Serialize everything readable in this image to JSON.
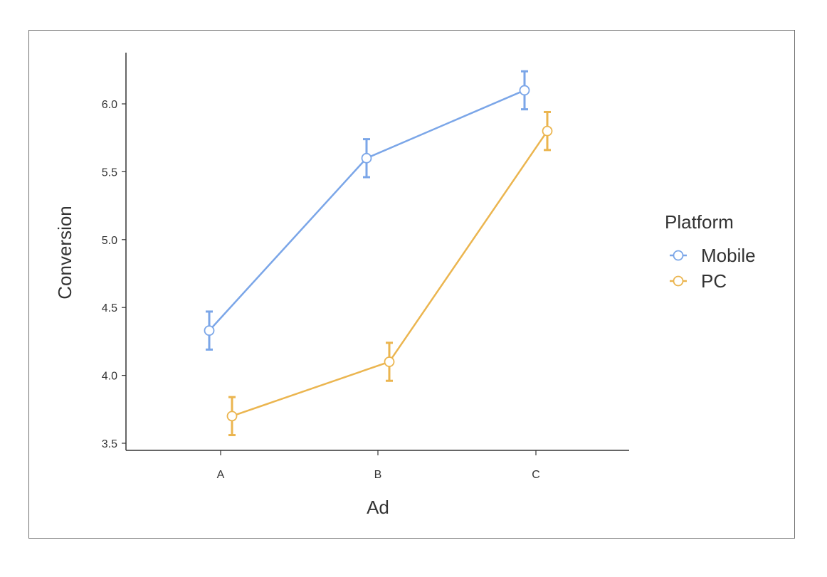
{
  "chart_data": {
    "type": "line",
    "xlabel": "Ad",
    "ylabel": "Conversion",
    "categories": [
      "A",
      "B",
      "C"
    ],
    "ylim": [
      3.45,
      6.37
    ],
    "yticks": [
      3.5,
      4.0,
      4.5,
      5.0,
      5.5,
      6.0
    ],
    "ytick_labels": [
      "3.5",
      "4.0",
      "4.5",
      "5.0",
      "5.5",
      "6.0"
    ],
    "grid": false,
    "legend": {
      "title": "Platform",
      "position": "right"
    },
    "series": [
      {
        "name": "Mobile",
        "color": "#7ba6e8",
        "values": [
          4.33,
          5.6,
          6.1
        ],
        "error_low": [
          4.19,
          5.46,
          5.96
        ],
        "error_high": [
          4.47,
          5.74,
          6.24
        ]
      },
      {
        "name": "PC",
        "color": "#ebb54f",
        "values": [
          3.7,
          4.1,
          5.8
        ],
        "error_low": [
          3.56,
          3.96,
          5.66
        ],
        "error_high": [
          3.84,
          4.24,
          5.94
        ]
      }
    ]
  }
}
